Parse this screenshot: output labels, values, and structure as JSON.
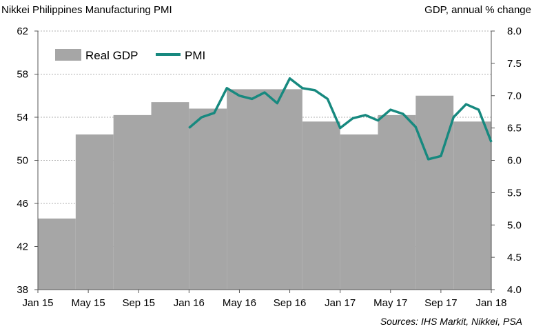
{
  "chart_data": {
    "type": "bar+line",
    "title_left": "Nikkei Philippines Manufacturing PMI",
    "title_right": "GDP, annual % change",
    "source": "Sources: IHS Markit, Nikkei, PSA",
    "y_left": {
      "min": 38,
      "max": 62,
      "ticks": [
        "38",
        "42",
        "46",
        "50",
        "54",
        "58",
        "62"
      ]
    },
    "y_right": {
      "min": 4.0,
      "max": 8.0,
      "ticks": [
        "4.0",
        "4.5",
        "5.0",
        "5.5",
        "6.0",
        "6.5",
        "7.0",
        "7.5",
        "8.0"
      ]
    },
    "x_ticks": [
      "Jan 15",
      "May 15",
      "Sep 15",
      "Jan 16",
      "May 16",
      "Sep 16",
      "Jan 17",
      "May 17",
      "Sep 17",
      "Jan 18"
    ],
    "grid": "horizontal dashed",
    "legend_position": "top-left",
    "gdp": {
      "name": "Real GDP",
      "color": "#a6a6a6",
      "axis": "right",
      "quarters": [
        "Q1 2015",
        "Q2 2015",
        "Q3 2015",
        "Q4 2015",
        "Q1 2016",
        "Q2 2016",
        "Q3 2016",
        "Q4 2016",
        "Q1 2017",
        "Q2 2017",
        "Q3 2017",
        "Q4 2017"
      ],
      "values": [
        5.1,
        6.4,
        6.7,
        6.9,
        6.8,
        7.1,
        7.1,
        6.6,
        6.4,
        6.7,
        7.0,
        6.6
      ]
    },
    "pmi": {
      "name": "PMI",
      "color": "#17897f",
      "axis": "left",
      "months": [
        "Jan 16",
        "Feb 16",
        "Mar 16",
        "Apr 16",
        "May 16",
        "Jun 16",
        "Jul 16",
        "Aug 16",
        "Sep 16",
        "Oct 16",
        "Nov 16",
        "Dec 16",
        "Jan 17",
        "Feb 17",
        "Mar 17",
        "Apr 17",
        "May 17",
        "Jun 17",
        "Jul 17",
        "Aug 17",
        "Sep 17",
        "Oct 17",
        "Nov 17",
        "Dec 17",
        "Jan 18"
      ],
      "values": [
        53.0,
        54.0,
        54.4,
        56.7,
        56.0,
        55.7,
        56.3,
        55.3,
        57.6,
        56.7,
        56.5,
        55.7,
        53.0,
        53.9,
        54.2,
        53.7,
        54.7,
        54.3,
        53.1,
        50.1,
        50.4,
        54.0,
        55.2,
        54.7,
        51.7
      ]
    }
  }
}
